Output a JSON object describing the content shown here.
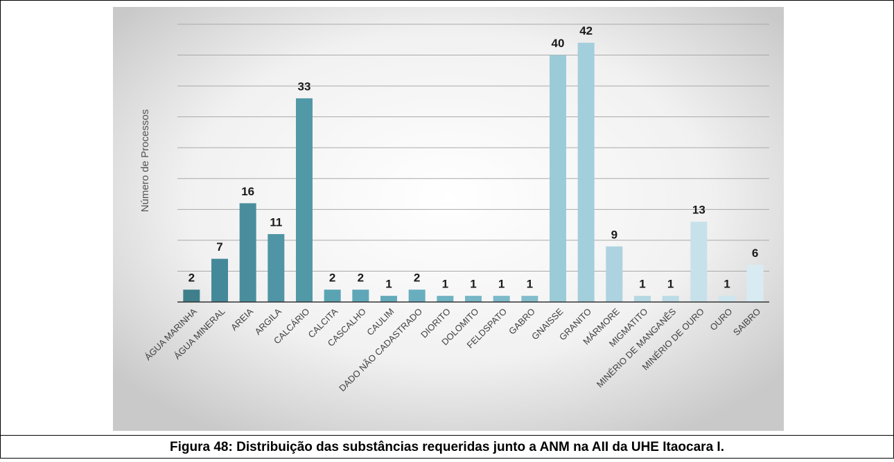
{
  "chart_data": {
    "type": "bar",
    "y_label": "Número de Processos",
    "caption": "Figura 48: Distribuição das substâncias requeridas junto a ANM na AII da UHE Itaocara I.",
    "categories": [
      "ÁGUA MARINHA",
      "ÁGUA MINERAL",
      "AREIA",
      "ARGILA",
      "CALCÁRIO",
      "CALCITA",
      "CASCALHO",
      "CAULIM",
      "DADO NÃO CADASTRADO",
      "DIORITO",
      "DOLOMITO",
      "FELDSPATO",
      "GABRO",
      "GNAISSE",
      "GRANITO",
      "MÁRMORE",
      "MIGMATITO",
      "MINÉRIO DE MANGANÊS",
      "MINÉRIO DE OURO",
      "OURO",
      "SAIBRO"
    ],
    "values": [
      2,
      7,
      16,
      11,
      33,
      2,
      2,
      1,
      2,
      1,
      1,
      1,
      1,
      40,
      42,
      9,
      1,
      1,
      13,
      1,
      6
    ],
    "colors": [
      "#3e7f8b",
      "#44899a",
      "#4a8e9e",
      "#4f95a5",
      "#5299a8",
      "#5aa3b3",
      "#5fa7b8",
      "#63aabb",
      "#68aebf",
      "#70b3c3",
      "#76b6c6",
      "#7cbac9",
      "#83bdcb",
      "#9ccbd8",
      "#a3cedb",
      "#acd3df",
      "#b5d8e3",
      "#bcdce6",
      "#c6e1ea",
      "#cfe6ee",
      "#d8ebf2"
    ],
    "ylim": [
      0,
      45
    ],
    "yticks": [
      0,
      5,
      10,
      15,
      20,
      25,
      30,
      35,
      40,
      45
    ],
    "grid": true
  }
}
